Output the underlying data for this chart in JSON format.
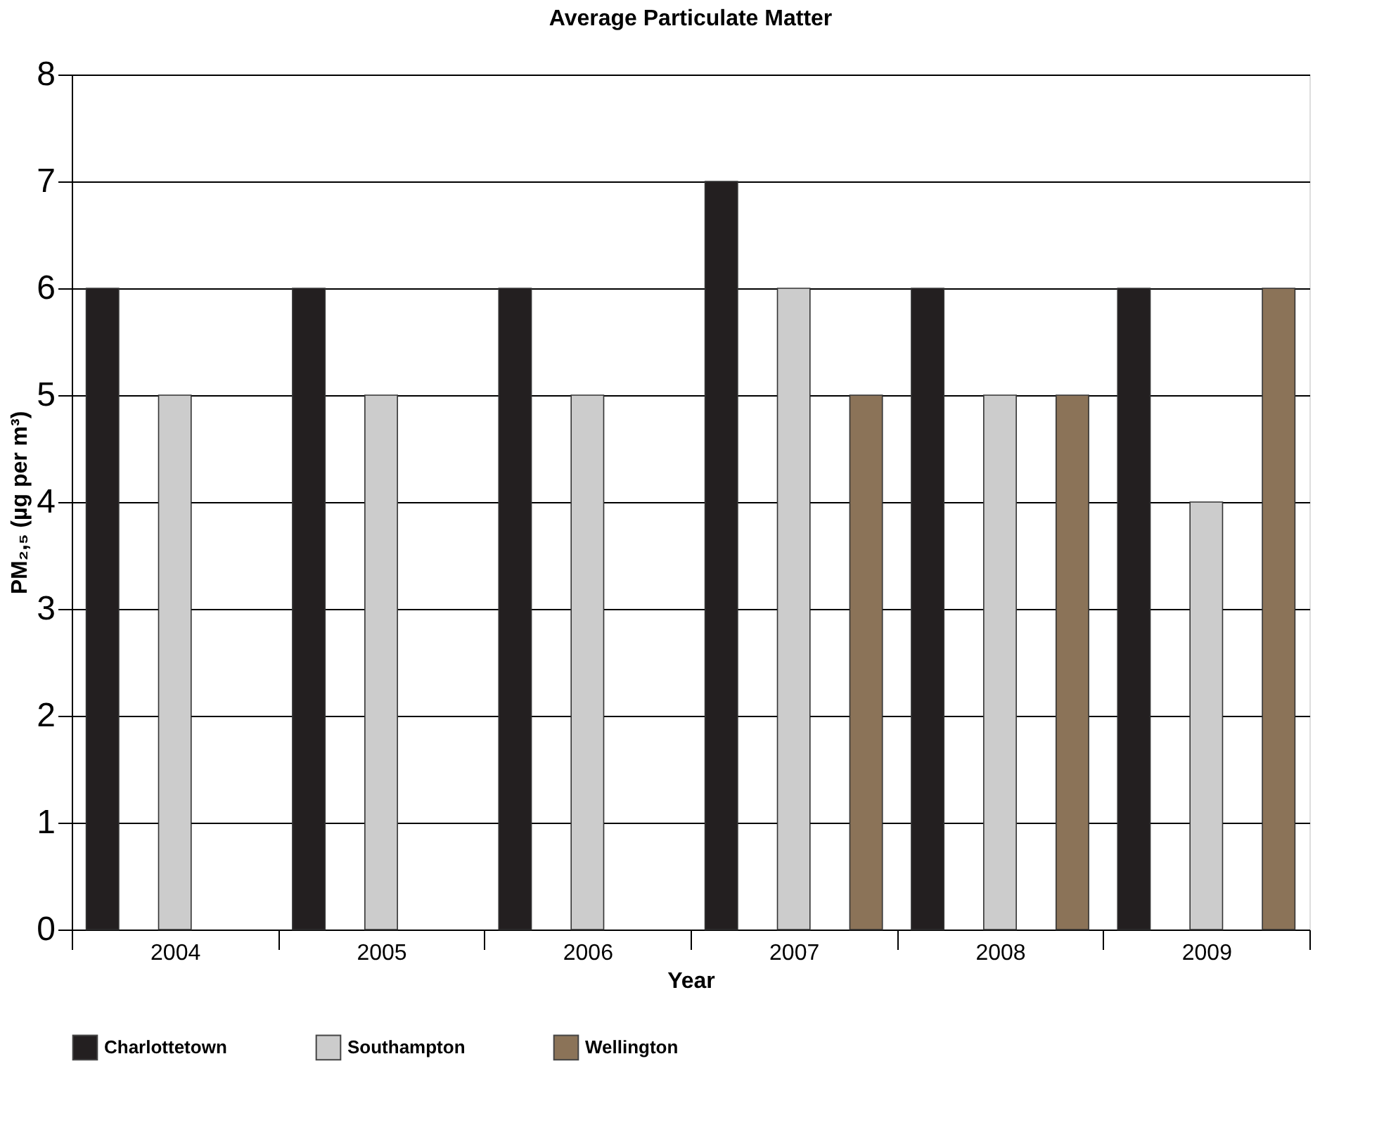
{
  "chart_data": {
    "type": "bar",
    "title": "Average Particulate Matter",
    "xlabel": "Year",
    "ylabel": "PM₂,₅ (µg per m³)",
    "categories": [
      "2004",
      "2005",
      "2006",
      "2007",
      "2008",
      "2009"
    ],
    "series": [
      {
        "name": "Charlottetown",
        "color": "#231f20",
        "values": [
          6,
          6,
          6,
          7,
          6,
          6
        ]
      },
      {
        "name": "Southampton",
        "color": "#cccccc",
        "values": [
          5,
          5,
          5,
          6,
          5,
          4
        ]
      },
      {
        "name": "Wellington",
        "color": "#8b7358",
        "values": [
          null,
          null,
          null,
          5,
          5,
          6
        ]
      }
    ],
    "ylim": [
      0,
      8
    ],
    "yticks": [
      0,
      1,
      2,
      3,
      4,
      5,
      6,
      7,
      8
    ],
    "grid": "y",
    "legend": "bottom"
  }
}
